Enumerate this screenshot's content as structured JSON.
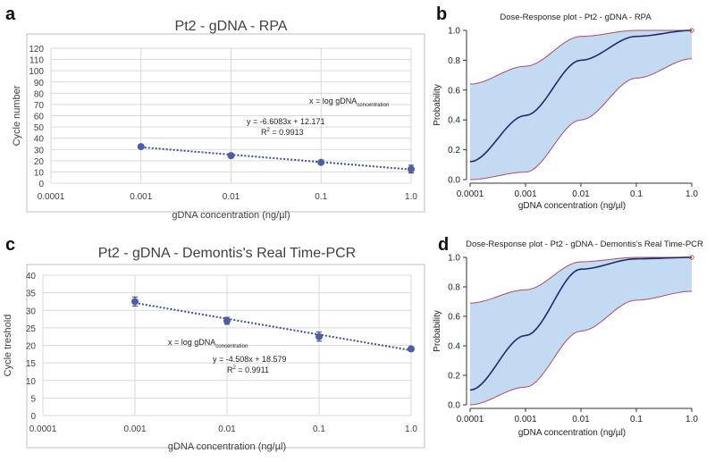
{
  "chart_data": [
    {
      "panel": "a",
      "type": "scatter",
      "title": "Pt2 - gDNA - RPA",
      "xlabel": "gDNA concentration (ng/µl)",
      "ylabel": "Cycle number",
      "xscale": "log",
      "xlim": [
        0.0001,
        1.0
      ],
      "ylim": [
        0,
        120
      ],
      "xticks": [
        "0.0001",
        "0.001",
        "0.01",
        "0.1",
        "1.0"
      ],
      "yticks": [
        "0",
        "10",
        "20",
        "30",
        "40",
        "50",
        "60",
        "70",
        "80",
        "90",
        "100",
        "110",
        "120"
      ],
      "x": [
        0.001,
        0.01,
        0.1,
        1.0
      ],
      "y": [
        32.5,
        24.5,
        18.5,
        12.5
      ],
      "err": [
        1.5,
        2.0,
        1.0,
        3.5
      ],
      "fit": {
        "slope": -6.6083,
        "intercept": 12.171
      },
      "annotation_x_prefix": "x = log gDNA",
      "annotation_x_sub": "concentration",
      "equation": "y = -6.6083x + 12.171",
      "r2_prefix": "R",
      "r2_sup": "2",
      "r2_value": " = 0.9913"
    },
    {
      "panel": "b",
      "type": "area",
      "title": "Dose-Response plot - Pt2 - gDNA - RPA",
      "xlabel": "gDNA concentration (ng/µl)",
      "ylabel": "Probability",
      "xscale": "log",
      "xlim": [
        0.0001,
        1.0
      ],
      "ylim": [
        0,
        1.0
      ],
      "xticks": [
        "0.0001",
        "0.001",
        "0.01",
        "0.1",
        "1.0"
      ],
      "yticks": [
        "0.0",
        "0.2",
        "0.4",
        "0.6",
        "0.8",
        "1.0"
      ],
      "series": [
        {
          "name": "upper",
          "x": [
            0.0001,
            0.001,
            0.01,
            0.1,
            1.0
          ],
          "values": [
            0.64,
            0.76,
            0.96,
            1.0,
            1.0
          ]
        },
        {
          "name": "mean",
          "x": [
            0.0001,
            0.001,
            0.01,
            0.1,
            1.0
          ],
          "values": [
            0.12,
            0.43,
            0.8,
            0.96,
            1.0
          ]
        },
        {
          "name": "lower",
          "x": [
            0.0001,
            0.001,
            0.01,
            0.1,
            1.0
          ],
          "values": [
            0.0,
            0.05,
            0.4,
            0.68,
            0.81
          ]
        }
      ]
    },
    {
      "panel": "c",
      "type": "scatter",
      "title": "Pt2 - gDNA - Demontis's Real Time-PCR",
      "xlabel": "gDNA concentration (ng/µl)",
      "ylabel": "Cycle treshold",
      "xscale": "log",
      "xlim": [
        0.0001,
        1.0
      ],
      "ylim": [
        0,
        40
      ],
      "xticks": [
        "0.0001",
        "0.001",
        "0.01",
        "0.1",
        "1.0"
      ],
      "yticks": [
        "0",
        "5",
        "10",
        "15",
        "20",
        "25",
        "30",
        "35",
        "40"
      ],
      "x": [
        0.001,
        0.01,
        0.1,
        1.0
      ],
      "y": [
        32.5,
        27.0,
        22.5,
        19.0
      ],
      "err": [
        1.3,
        1.0,
        1.3,
        0.6
      ],
      "fit": {
        "slope": -4.508,
        "intercept": 18.579
      },
      "annotation_x_prefix": "x = log gDNA",
      "annotation_x_sub": "concentration",
      "equation": "y = -4.508x + 18.579",
      "r2_prefix": "R",
      "r2_sup": "2",
      "r2_value": " = 0.9911"
    },
    {
      "panel": "d",
      "type": "area",
      "title": "Dose-Response plot - Pt2 - gDNA - Demontis's Real Time-PCR",
      "xlabel": "gDNA concentration (ng/µl)",
      "ylabel": "Probability",
      "xscale": "log",
      "xlim": [
        0.0001,
        1.0
      ],
      "ylim": [
        0,
        1.0
      ],
      "xticks": [
        "0.0001",
        "0.001",
        "0.01",
        "0.1",
        "1.0"
      ],
      "yticks": [
        "0.0",
        "0.2",
        "0.4",
        "0.6",
        "0.8",
        "1.0"
      ],
      "series": [
        {
          "name": "upper",
          "x": [
            0.0001,
            0.001,
            0.01,
            0.1,
            1.0
          ],
          "values": [
            0.69,
            0.78,
            0.97,
            1.0,
            1.0
          ]
        },
        {
          "name": "mean",
          "x": [
            0.0001,
            0.001,
            0.01,
            0.1,
            1.0
          ],
          "values": [
            0.1,
            0.47,
            0.92,
            0.99,
            1.0
          ]
        },
        {
          "name": "lower",
          "x": [
            0.0001,
            0.001,
            0.01,
            0.1,
            1.0
          ],
          "values": [
            0.0,
            0.12,
            0.5,
            0.71,
            0.77
          ]
        }
      ]
    }
  ],
  "colors": {
    "marker": "#4a5fa8",
    "trend": "#3a4f96",
    "band_fill": "#c3dbf2",
    "band_edge": "#b04a66",
    "mean_line": "#1f2a6e",
    "grid": "#d9d9d9",
    "axis": "#303030",
    "frame": "#bfbfbf"
  }
}
